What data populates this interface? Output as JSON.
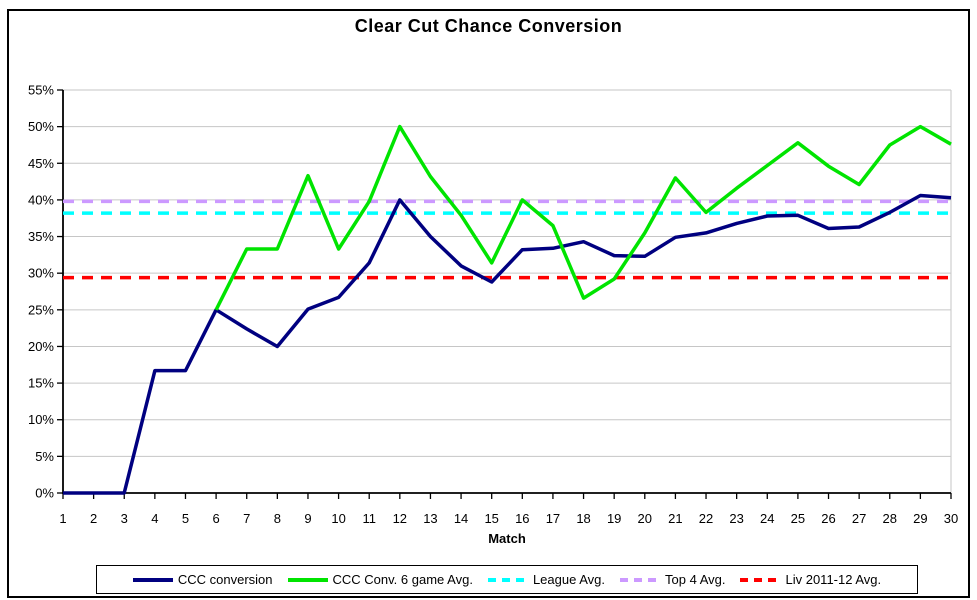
{
  "title": "Clear Cut Chance Conversion",
  "chart_data": {
    "type": "line",
    "title": "Clear Cut Chance Conversion",
    "xlabel": "Match",
    "ylabel": "",
    "grid": true,
    "legend_position": "bottom",
    "ylim": [
      0,
      55
    ],
    "ytick_step": 5,
    "ytick_labels": [
      "0%",
      "5%",
      "10%",
      "15%",
      "20%",
      "25%",
      "30%",
      "35%",
      "40%",
      "45%",
      "50%",
      "55%"
    ],
    "xtick_labels": [
      "1",
      "2",
      "3",
      "4",
      "5",
      "6",
      "7",
      "8",
      "9",
      "10",
      "11",
      "12",
      "13",
      "14",
      "15",
      "16",
      "17",
      "18",
      "19",
      "20",
      "21",
      "22",
      "23",
      "24",
      "25",
      "26",
      "27",
      "28",
      "29",
      "30"
    ],
    "colors": {
      "grid": "#c6c6c6",
      "axis": "#000000",
      "background": "#ffffff"
    },
    "series": [
      {
        "name": "CCC conversion",
        "color": "#000080",
        "style": "solid",
        "values": [
          0,
          0,
          0,
          16.7,
          16.7,
          25,
          22.4,
          20,
          25.1,
          26.7,
          31.4,
          40,
          35,
          31,
          28.8,
          33.2,
          33.4,
          34.3,
          32.4,
          32.3,
          34.9,
          35.5,
          36.8,
          37.8,
          37.9,
          36.1,
          36.3,
          38.3,
          40.6,
          40.3
        ]
      },
      {
        "name": "CCC Conv. 6 game Avg.",
        "color": "#00e400",
        "style": "solid",
        "values": [
          null,
          null,
          null,
          null,
          null,
          25,
          33.3,
          33.3,
          43.3,
          33.3,
          39.8,
          50,
          43.2,
          37.9,
          31.4,
          40,
          36.5,
          26.6,
          29.2,
          35.5,
          43,
          38.3,
          41.6,
          44.7,
          47.8,
          44.6,
          42.1,
          47.5,
          50,
          47.6
        ]
      },
      {
        "name": "League Avg.",
        "color": "#00ffff",
        "style": "dashed",
        "constant": 38.2
      },
      {
        "name": "Top 4 Avg.",
        "color": "#cc99ff",
        "style": "dashed",
        "constant": 39.8
      },
      {
        "name": "Liv 2011-12 Avg.",
        "color": "#ff0000",
        "style": "dashed",
        "constant": 29.4
      }
    ]
  }
}
